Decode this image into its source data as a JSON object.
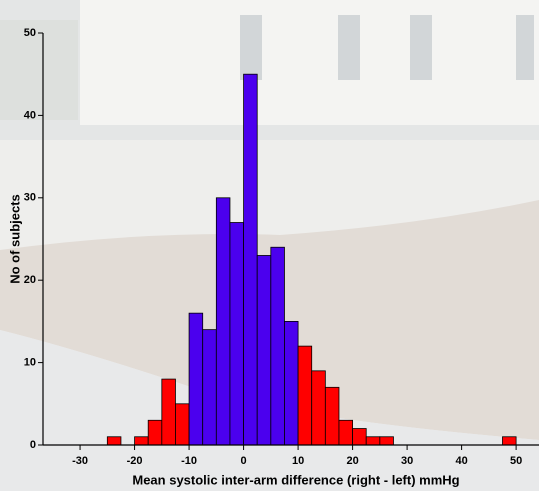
{
  "chart_data": {
    "type": "histogram",
    "x_label": "Mean systolic inter-arm difference (right - left) mmHg",
    "y_label": "No of subjects",
    "bins": [
      -25,
      -22.5,
      -20,
      -17.5,
      -15,
      -12.5,
      -10,
      -7.5,
      -5,
      -2.5,
      0,
      2.5,
      5,
      7.5,
      10,
      12.5,
      15,
      17.5,
      20,
      22.5,
      25,
      27.5,
      30,
      32.5,
      35,
      37.5,
      40,
      42.5,
      45,
      47.5,
      50
    ],
    "values": [
      1,
      0,
      1,
      3,
      8,
      5,
      16,
      14,
      30,
      27,
      45,
      23,
      24,
      15,
      12,
      9,
      7,
      3,
      2,
      1,
      1,
      0,
      0,
      0,
      0,
      0,
      0,
      0,
      0,
      1
    ],
    "colors": [
      "#ff0000",
      "#ff0000",
      "#ff0000",
      "#ff0000",
      "#ff0000",
      "#ff0000",
      "#4b00ee",
      "#4b00ee",
      "#4b00ee",
      "#4b00ee",
      "#4b00ee",
      "#4b00ee",
      "#4b00ee",
      "#4b00ee",
      "#ff0000",
      "#ff0000",
      "#ff0000",
      "#ff0000",
      "#ff0000",
      "#ff0000",
      "#ff0000",
      "#ff0000",
      "#ff0000",
      "#ff0000",
      "#ff0000",
      "#ff0000",
      "#ff0000",
      "#ff0000",
      "#ff0000",
      "#ff0000"
    ],
    "xlim": [
      -36.8,
      54.2
    ],
    "ylim": [
      0,
      50
    ],
    "xticks": [
      -30,
      -20,
      -10,
      0,
      10,
      20,
      30,
      40,
      50
    ],
    "yticks": [
      0,
      10,
      20,
      30,
      40,
      50
    ]
  }
}
